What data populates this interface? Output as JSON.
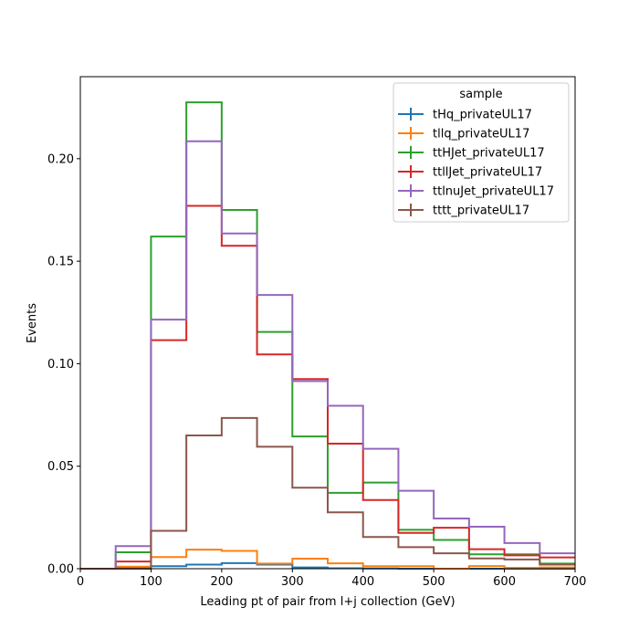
{
  "chart_data": {
    "type": "histogram-step",
    "xlabel": "Leading pt of pair from l+j collection (GeV)",
    "ylabel": "Events",
    "xlim": [
      0,
      700
    ],
    "ylim": [
      0,
      0.24
    ],
    "x_ticks": [
      0,
      100,
      200,
      300,
      400,
      500,
      600,
      700
    ],
    "y_ticks": [
      0.0,
      0.05,
      0.1,
      0.15,
      0.2
    ],
    "x_tick_labels": [
      "0",
      "100",
      "200",
      "300",
      "400",
      "500",
      "600",
      "700"
    ],
    "y_tick_labels": [
      "0.00",
      "0.05",
      "0.10",
      "0.15",
      "0.20"
    ],
    "grid": false,
    "bin_edges": [
      0,
      50,
      100,
      150,
      200,
      250,
      300,
      350,
      400,
      450,
      500,
      550,
      600,
      650,
      700
    ],
    "legend": {
      "title": "sample",
      "placement": "top-right"
    },
    "series": [
      {
        "name": "tHq_privateUL17",
        "color": "#1f77b4",
        "values": [
          0.0,
          0.0003,
          0.0012,
          0.002,
          0.0027,
          0.002,
          0.0006,
          0.0002,
          0.0001,
          0.0,
          0.0,
          0.0,
          0.0,
          0.0
        ]
      },
      {
        "name": "tllq_privateUL17",
        "color": "#ff7f0e",
        "values": [
          0.0,
          0.001,
          0.0057,
          0.0093,
          0.0087,
          0.0025,
          0.0049,
          0.0026,
          0.0012,
          0.0012,
          0.0,
          0.0013,
          0.0004,
          0.0006
        ]
      },
      {
        "name": "ttHJet_privateUL17",
        "color": "#2ca02c",
        "values": [
          0.0,
          0.008,
          0.162,
          0.2275,
          0.175,
          0.1155,
          0.0645,
          0.037,
          0.042,
          0.019,
          0.014,
          0.007,
          0.007,
          0.0025
        ]
      },
      {
        "name": "ttllJet_privateUL17",
        "color": "#d62728",
        "values": [
          0.0,
          0.0035,
          0.1115,
          0.177,
          0.1575,
          0.1045,
          0.0925,
          0.061,
          0.0335,
          0.0175,
          0.02,
          0.0095,
          0.0065,
          0.0055
        ]
      },
      {
        "name": "ttlnuJet_privateUL17",
        "color": "#9467bd",
        "values": [
          0.0,
          0.011,
          0.1215,
          0.2085,
          0.1635,
          0.1335,
          0.0915,
          0.0795,
          0.0585,
          0.038,
          0.0245,
          0.0205,
          0.0125,
          0.0075
        ]
      },
      {
        "name": "tttt_privateUL17",
        "color": "#8c564b",
        "values": [
          0.0,
          0.0,
          0.0185,
          0.065,
          0.0735,
          0.0595,
          0.0395,
          0.0275,
          0.0155,
          0.0105,
          0.0075,
          0.005,
          0.0045,
          0.002
        ]
      }
    ]
  }
}
